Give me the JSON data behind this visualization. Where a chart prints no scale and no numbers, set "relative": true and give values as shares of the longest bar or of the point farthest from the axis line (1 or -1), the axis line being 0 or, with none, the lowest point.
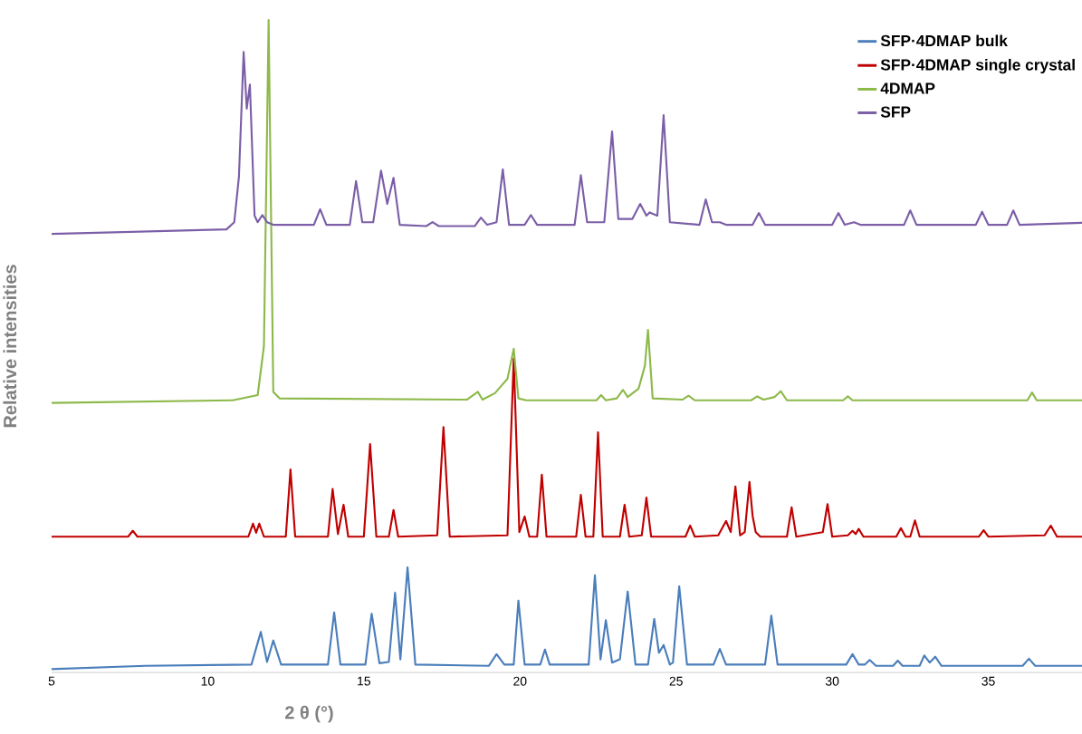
{
  "chart_data": {
    "type": "line",
    "relative": true,
    "xlabel": "2 θ (°)",
    "ylabel": "Relative intensities",
    "xlim": [
      5,
      38
    ],
    "xticks": [
      5,
      10,
      15,
      20,
      25,
      30,
      35
    ],
    "legend": "top right",
    "marker": "none",
    "series": [
      {
        "name": "SFP·4DMAP bulk",
        "color": "#4a7ebb",
        "x": [
          5,
          8,
          11.4,
          11.7,
          11.9,
          12.1,
          12.35,
          13.85,
          14.05,
          14.25,
          15.05,
          15.25,
          15.5,
          15.8,
          16.0,
          16.17,
          16.4,
          16.65,
          19.0,
          19.25,
          19.5,
          19.8,
          19.95,
          20.15,
          20.65,
          20.8,
          20.95,
          22.2,
          22.4,
          22.58,
          22.75,
          22.95,
          23.2,
          23.45,
          23.7,
          24.1,
          24.3,
          24.45,
          24.6,
          24.8,
          24.9,
          25.1,
          25.35,
          26.2,
          26.4,
          26.6,
          27.85,
          28.05,
          28.25,
          30.45,
          30.65,
          30.85,
          31.05,
          31.2,
          31.4,
          31.95,
          32.1,
          32.25,
          32.8,
          32.95,
          33.12,
          33.3,
          33.5,
          36.1,
          36.3,
          36.5,
          38
        ],
        "values": [
          0.005,
          0.01,
          0.012,
          0.062,
          0.016,
          0.049,
          0.012,
          0.012,
          0.092,
          0.012,
          0.012,
          0.09,
          0.014,
          0.016,
          0.122,
          0.02,
          0.161,
          0.012,
          0.01,
          0.028,
          0.012,
          0.012,
          0.11,
          0.012,
          0.012,
          0.035,
          0.012,
          0.012,
          0.149,
          0.02,
          0.08,
          0.015,
          0.02,
          0.124,
          0.012,
          0.012,
          0.082,
          0.03,
          0.042,
          0.012,
          0.015,
          0.132,
          0.012,
          0.012,
          0.036,
          0.012,
          0.012,
          0.087,
          0.012,
          0.012,
          0.028,
          0.012,
          0.012,
          0.019,
          0.01,
          0.01,
          0.018,
          0.01,
          0.01,
          0.026,
          0.015,
          0.024,
          0.01,
          0.01,
          0.021,
          0.01,
          0.01
        ]
      },
      {
        "name": "SFP·4DMAP single crystal",
        "color": "#c00000",
        "x": [
          5,
          7.45,
          7.6,
          7.75,
          11.3,
          11.45,
          11.55,
          11.65,
          11.8,
          12.5,
          12.65,
          12.8,
          13.85,
          14.0,
          14.17,
          14.35,
          14.5,
          15.0,
          15.2,
          15.4,
          15.8,
          15.95,
          16.1,
          17.35,
          17.55,
          17.75,
          19.6,
          19.8,
          19.98,
          20.15,
          20.3,
          20.55,
          20.7,
          20.85,
          21.8,
          21.95,
          22.1,
          22.35,
          22.5,
          22.65,
          23.2,
          23.35,
          23.5,
          23.9,
          24.05,
          24.2,
          25.3,
          25.45,
          25.6,
          26.35,
          26.6,
          26.75,
          26.9,
          27.05,
          27.2,
          27.35,
          27.45,
          27.55,
          27.7,
          28.55,
          28.7,
          28.85,
          29.7,
          29.85,
          30.0,
          30.5,
          30.65,
          30.75,
          30.85,
          31.0,
          32.05,
          32.2,
          32.35,
          32.5,
          32.65,
          32.8,
          34.7,
          34.85,
          35.0,
          36.8,
          37.0,
          37.2,
          38
        ],
        "values": [
          0.208,
          0.208,
          0.217,
          0.208,
          0.208,
          0.228,
          0.214,
          0.228,
          0.208,
          0.208,
          0.311,
          0.208,
          0.208,
          0.281,
          0.212,
          0.257,
          0.208,
          0.208,
          0.35,
          0.208,
          0.208,
          0.249,
          0.208,
          0.21,
          0.376,
          0.208,
          0.21,
          0.481,
          0.215,
          0.239,
          0.208,
          0.208,
          0.303,
          0.208,
          0.208,
          0.272,
          0.208,
          0.208,
          0.368,
          0.208,
          0.208,
          0.257,
          0.208,
          0.21,
          0.268,
          0.208,
          0.208,
          0.225,
          0.208,
          0.21,
          0.232,
          0.215,
          0.285,
          0.21,
          0.215,
          0.292,
          0.24,
          0.215,
          0.208,
          0.208,
          0.253,
          0.208,
          0.215,
          0.258,
          0.208,
          0.21,
          0.217,
          0.212,
          0.22,
          0.208,
          0.208,
          0.221,
          0.208,
          0.208,
          0.233,
          0.208,
          0.208,
          0.218,
          0.208,
          0.21,
          0.225,
          0.208,
          0.208
        ]
      },
      {
        "name": "4DMAP",
        "color": "#8db94a",
        "x": [
          5,
          10.8,
          11.6,
          11.8,
          11.95,
          12.1,
          12.3,
          18.3,
          18.65,
          18.8,
          19.2,
          19.4,
          19.6,
          19.8,
          19.95,
          20.2,
          22.45,
          22.6,
          22.75,
          23.1,
          23.3,
          23.45,
          23.8,
          24.0,
          24.1,
          24.25,
          25.2,
          25.4,
          25.6,
          27.4,
          27.6,
          27.8,
          28.15,
          28.35,
          28.55,
          30.35,
          30.5,
          30.65,
          36.25,
          36.4,
          36.55,
          38
        ],
        "values": [
          0.413,
          0.417,
          0.425,
          0.5,
          1.0,
          0.43,
          0.42,
          0.418,
          0.43,
          0.418,
          0.428,
          0.439,
          0.45,
          0.496,
          0.42,
          0.417,
          0.417,
          0.425,
          0.417,
          0.42,
          0.433,
          0.422,
          0.435,
          0.47,
          0.525,
          0.42,
          0.418,
          0.424,
          0.417,
          0.417,
          0.423,
          0.418,
          0.422,
          0.431,
          0.417,
          0.417,
          0.423,
          0.417,
          0.417,
          0.429,
          0.417,
          0.417
        ]
      },
      {
        "name": "SFP",
        "color": "#7b5ea7",
        "x": [
          5,
          10.6,
          10.85,
          11.0,
          11.15,
          11.25,
          11.35,
          11.5,
          11.6,
          11.75,
          11.9,
          12.1,
          13.4,
          13.6,
          13.8,
          14.55,
          14.75,
          14.95,
          15.3,
          15.55,
          15.75,
          15.95,
          16.15,
          17.0,
          17.2,
          17.4,
          18.55,
          18.75,
          18.95,
          19.25,
          19.45,
          19.65,
          20.15,
          20.35,
          20.55,
          21.75,
          21.95,
          22.15,
          22.7,
          22.95,
          23.15,
          23.6,
          23.85,
          24.05,
          24.15,
          24.4,
          24.6,
          24.8,
          25.75,
          25.95,
          26.15,
          26.4,
          26.6,
          27.45,
          27.65,
          27.85,
          30.0,
          30.2,
          30.4,
          30.7,
          30.9,
          32.3,
          32.5,
          32.7,
          34.6,
          34.8,
          35.0,
          35.6,
          35.8,
          36.0,
          38
        ],
        "values": [
          0.672,
          0.679,
          0.69,
          0.76,
          0.951,
          0.864,
          0.901,
          0.7,
          0.69,
          0.701,
          0.69,
          0.686,
          0.686,
          0.71,
          0.686,
          0.686,
          0.753,
          0.69,
          0.69,
          0.769,
          0.718,
          0.758,
          0.686,
          0.684,
          0.69,
          0.684,
          0.684,
          0.697,
          0.686,
          0.69,
          0.771,
          0.686,
          0.686,
          0.701,
          0.686,
          0.686,
          0.762,
          0.69,
          0.69,
          0.829,
          0.695,
          0.695,
          0.718,
          0.7,
          0.705,
          0.7,
          0.854,
          0.69,
          0.686,
          0.725,
          0.69,
          0.69,
          0.686,
          0.686,
          0.704,
          0.686,
          0.686,
          0.704,
          0.686,
          0.69,
          0.686,
          0.686,
          0.708,
          0.686,
          0.686,
          0.706,
          0.686,
          0.686,
          0.708,
          0.686,
          0.689
        ]
      }
    ]
  }
}
